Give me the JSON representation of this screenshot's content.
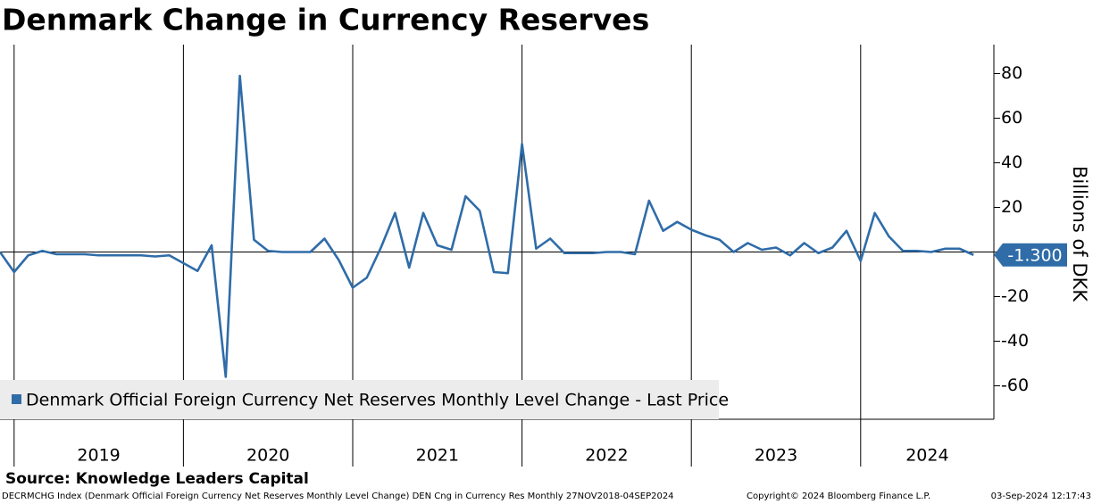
{
  "chart_data": {
    "type": "line",
    "title": "Denmark Change in Currency Reserves",
    "source": "Source: Knowledge Leaders Capital",
    "footer": "DECRMCHG Index (Denmark Official Foreign Currency Net Reserves Monthly Level Change) DEN Cng in Currency Res  Monthly 27NOV2018-04SEP2024",
    "copyright": "Copyright© 2024 Bloomberg Finance L.P.",
    "timestamp": "03-Sep-2024 12:17:43",
    "y_label": "Billions of DKK",
    "categories": [
      null,
      "2019",
      null,
      null,
      null,
      null,
      null,
      null,
      null,
      null,
      null,
      null,
      null,
      "2020",
      null,
      null,
      null,
      null,
      null,
      null,
      null,
      null,
      null,
      null,
      null,
      "2021",
      null,
      null,
      null,
      null,
      null,
      null,
      null,
      null,
      null,
      null,
      null,
      "2022",
      null,
      null,
      null,
      null,
      null,
      null,
      null,
      null,
      null,
      null,
      null,
      "2023",
      null,
      null,
      null,
      null,
      null,
      null,
      null,
      null,
      null,
      null,
      null,
      "2024",
      null,
      null,
      null,
      null,
      null,
      null,
      null,
      null
    ],
    "series": [
      {
        "name": "Denmark Official Foreign Currency Net Reserves Monthly Level Change - Last Price",
        "color": "#2f6ca8",
        "values": [
          0,
          -9,
          -1.5,
          0.5,
          -1,
          -1,
          -1,
          -1.5,
          -1.5,
          -1.5,
          -1.5,
          -2,
          -1.5,
          -5,
          -8.5,
          3,
          -56,
          79,
          5.5,
          0.5,
          0,
          0,
          0,
          6,
          -3.5,
          -16,
          -11.5,
          2,
          17.5,
          -7,
          17.5,
          3,
          1,
          25,
          18.5,
          -9,
          -9.5,
          48.5,
          1.5,
          6,
          -0.5,
          -0.5,
          -0.5,
          0,
          0,
          -1,
          23,
          9.5,
          13.5,
          10,
          7.5,
          5.5,
          0,
          4,
          1,
          2,
          -1.5,
          4,
          -0.5,
          2,
          9.5,
          -4,
          17.5,
          7,
          0.5,
          0.5,
          0,
          1.5,
          1.5,
          -1.3
        ],
        "value_labels": [
          null,
          null,
          null,
          null,
          null,
          null,
          null,
          null,
          null,
          null,
          null,
          null,
          null,
          null,
          null,
          null,
          null,
          null,
          null,
          null,
          null,
          null,
          null,
          null,
          null,
          null,
          null,
          null,
          null,
          null,
          null,
          null,
          null,
          null,
          null,
          null,
          null,
          null,
          null,
          null,
          null,
          null,
          null,
          null,
          null,
          null,
          null,
          null,
          null,
          null,
          null,
          null,
          null,
          null,
          null,
          null,
          null,
          null,
          null,
          null,
          null,
          null,
          null,
          null,
          null,
          null,
          null,
          null,
          null,
          "-1.300"
        ]
      }
    ],
    "ylim": [
      -75,
      93
    ],
    "yticks": [
      80,
      60,
      40,
      20,
      0,
      -20,
      -40,
      -60
    ],
    "legend": "lower left"
  }
}
